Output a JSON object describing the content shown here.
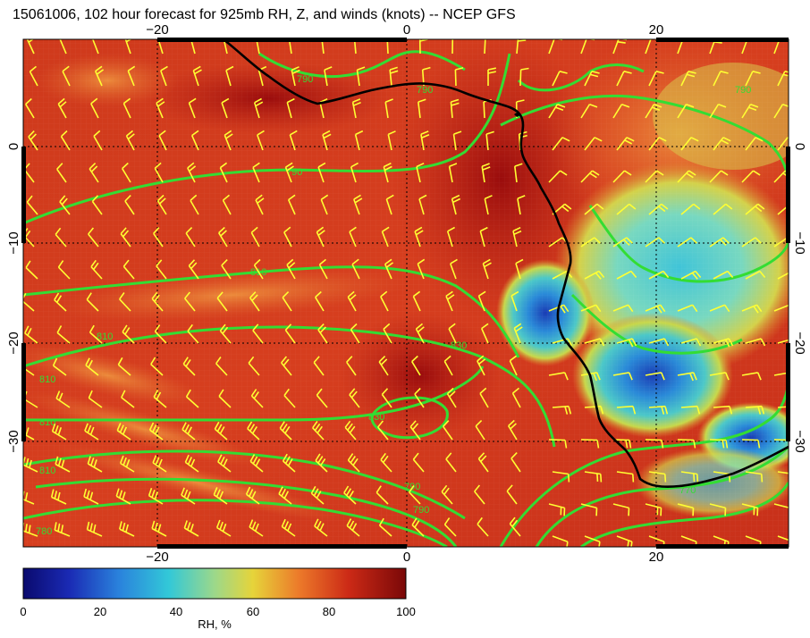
{
  "title": "15061006, 102 hour forecast for 925mb RH, Z, and winds (knots) -- NCEP GFS",
  "map": {
    "lon_ticks": [
      "−20",
      "0",
      "20"
    ],
    "lat_ticks": [
      "0",
      "−10",
      "−20",
      "−30"
    ],
    "contour_labels": [
      "790",
      "790",
      "790",
      "790",
      "810",
      "810",
      "830",
      "810",
      "810",
      "810",
      "790",
      "790",
      "830",
      "770",
      "780"
    ],
    "colors": {
      "land_coast": "#000000",
      "contours": "#33dd33",
      "wind_barbs": "#ffff33",
      "grid": "#000000"
    }
  },
  "colorbar": {
    "ticks": [
      "0",
      "20",
      "40",
      "60",
      "80",
      "100"
    ],
    "label": "RH, %",
    "colors": [
      "#0a0a6e",
      "#1e3cc8",
      "#28a0e6",
      "#3cd2c8",
      "#c8dc3c",
      "#f0c83c",
      "#e66428",
      "#c81e14",
      "#8c0a0a"
    ]
  }
}
